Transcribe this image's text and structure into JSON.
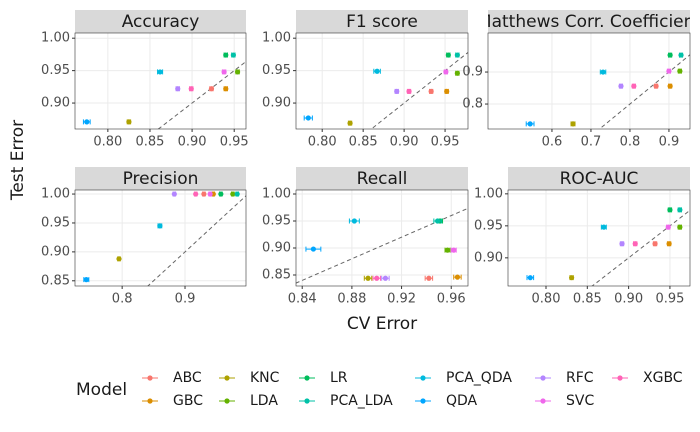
{
  "xlabel": "CV Error",
  "ylabel": "Test Error",
  "legend": {
    "title": "Model",
    "names": [
      "ABC",
      "GBC",
      "KNC",
      "LDA",
      "LR",
      "PCA_LDA",
      "PCA_QDA",
      "QDA",
      "RFC",
      "SVC",
      "XGBC"
    ],
    "colors": [
      "#F8766D",
      "#DB8E00",
      "#AEA200",
      "#64B200",
      "#00BD5C",
      "#00C1A7",
      "#00BADE",
      "#00A6FF",
      "#B385FF",
      "#EF67EB",
      "#FF63B6"
    ]
  },
  "chart_data": [
    {
      "type": "scatter",
      "title": "Accuracy",
      "diagonal": true,
      "x": [
        0.923,
        0.94,
        0.825,
        0.954,
        0.94,
        0.949,
        0.862,
        0.775,
        0.883,
        0.938,
        0.899
      ],
      "values": [
        0.922,
        0.922,
        0.871,
        0.948,
        0.974,
        0.974,
        0.948,
        0.871,
        0.922,
        0.948,
        0.922
      ],
      "xerr": [
        0.002,
        0.002,
        0.002,
        0.002,
        0.002,
        0.002,
        0.003,
        0.004,
        0.002,
        0.002,
        0.002
      ],
      "xlim": [
        0.761,
        0.964
      ],
      "ylim": [
        0.86,
        1.008
      ],
      "xticks": [
        {
          "value": 0.8,
          "label": "0.80"
        },
        0.85,
        {
          "value": 0.9,
          "label": "0.90"
        },
        0.95
      ],
      "yticks": [
        {
          "value": 0.9,
          "label": "0.90"
        },
        0.95,
        {
          "value": 1.0,
          "label": "1.00"
        }
      ]
    },
    {
      "type": "scatter",
      "title": "F1 score",
      "diagonal": true,
      "x": [
        0.933,
        0.952,
        0.834,
        0.965,
        0.954,
        0.965,
        0.867,
        0.783,
        0.891,
        0.951,
        0.906
      ],
      "values": [
        0.918,
        0.918,
        0.869,
        0.946,
        0.974,
        0.974,
        0.949,
        0.877,
        0.918,
        0.948,
        0.918
      ],
      "xerr": [
        0.002,
        0.002,
        0.002,
        0.002,
        0.002,
        0.002,
        0.004,
        0.005,
        0.002,
        0.002,
        0.002
      ],
      "xlim": [
        0.768,
        0.978
      ],
      "ylim": [
        0.86,
        1.008
      ],
      "xticks": [
        {
          "value": 0.8,
          "label": "0.80"
        },
        0.85,
        {
          "value": 0.9,
          "label": "0.90"
        },
        0.95
      ],
      "yticks": [
        {
          "value": 0.9,
          "label": "0.90"
        },
        0.95,
        {
          "value": 1.0,
          "label": "1.00"
        }
      ]
    },
    {
      "type": "scatter",
      "title": "Matthews Corr. Coefficient",
      "diagonal": true,
      "x": [
        0.867,
        0.903,
        0.654,
        0.928,
        0.903,
        0.931,
        0.731,
        0.544,
        0.777,
        0.9,
        0.81
      ],
      "values": [
        0.856,
        0.856,
        0.738,
        0.903,
        0.953,
        0.953,
        0.9,
        0.738,
        0.856,
        0.903,
        0.856
      ],
      "xerr": [
        0.004,
        0.004,
        0.005,
        0.004,
        0.004,
        0.004,
        0.007,
        0.01,
        0.004,
        0.004,
        0.004
      ],
      "xlim": [
        0.436,
        0.954
      ],
      "ylim": [
        0.722,
        1.022
      ],
      "xticks": [
        0.6,
        0.7,
        0.8,
        0.9
      ],
      "yticks": [
        0.8,
        0.9
      ]
    },
    {
      "type": "scatter",
      "title": "Precision",
      "diagonal": true,
      "x": [
        0.93,
        0.945,
        0.795,
        0.976,
        0.957,
        0.983,
        0.86,
        0.743,
        0.883,
        0.94,
        0.917
      ],
      "values": [
        1.0,
        1.0,
        0.888,
        1.0,
        1.0,
        1.0,
        0.945,
        0.852,
        1.0,
        1.0,
        1.0
      ],
      "xerr": [
        0.002,
        0.002,
        0.002,
        0.002,
        0.002,
        0.002,
        0.003,
        0.004,
        0.002,
        0.002,
        0.002
      ],
      "xlim": [
        0.725,
        0.997
      ],
      "ylim": [
        0.841,
        1.007
      ],
      "xticks": [
        0.8,
        0.9
      ],
      "yticks": [
        0.85,
        {
          "value": 0.9,
          "label": "0.90"
        },
        0.95,
        {
          "value": 1.0,
          "label": "1.00"
        }
      ]
    },
    {
      "type": "scatter",
      "title": "Recall",
      "diagonal": true,
      "x": [
        0.942,
        0.965,
        0.893,
        0.957,
        0.951,
        0.949,
        0.882,
        0.849,
        0.907,
        0.962,
        0.9
      ],
      "values": [
        0.844,
        0.846,
        0.844,
        0.896,
        0.95,
        0.95,
        0.95,
        0.898,
        0.844,
        0.896,
        0.844
      ],
      "xerr": [
        0.003,
        0.003,
        0.003,
        0.002,
        0.002,
        0.003,
        0.004,
        0.006,
        0.003,
        0.002,
        0.003
      ],
      "xlim": [
        0.835,
        0.9735
      ],
      "ylim": [
        0.8296,
        1.0074
      ],
      "xticks": [
        0.84,
        0.88,
        0.92,
        0.96
      ],
      "yticks": [
        0.85,
        {
          "value": 0.9,
          "label": "0.90"
        },
        0.95,
        {
          "value": 1.0,
          "label": "1.00"
        }
      ]
    },
    {
      "type": "scatter",
      "title": "ROC-AUC",
      "diagonal": true,
      "x": [
        0.932,
        0.949,
        0.831,
        0.962,
        0.95,
        0.962,
        0.87,
        0.781,
        0.892,
        0.948,
        0.908
      ],
      "values": [
        0.922,
        0.922,
        0.869,
        0.948,
        0.975,
        0.975,
        0.948,
        0.869,
        0.922,
        0.948,
        0.922
      ],
      "xerr": [
        0.002,
        0.002,
        0.002,
        0.002,
        0.002,
        0.002,
        0.003,
        0.004,
        0.002,
        0.002,
        0.002
      ],
      "xlim": [
        0.754,
        0.9743
      ],
      "ylim": [
        0.856,
        1.006
      ],
      "xticks": [
        {
          "value": 0.8,
          "label": "0.80"
        },
        0.85,
        {
          "value": 0.9,
          "label": "0.90"
        },
        0.95
      ],
      "yticks": [
        {
          "value": 0.9,
          "label": "0.90"
        },
        0.95,
        {
          "value": 1.0,
          "label": "1.00"
        }
      ]
    }
  ]
}
